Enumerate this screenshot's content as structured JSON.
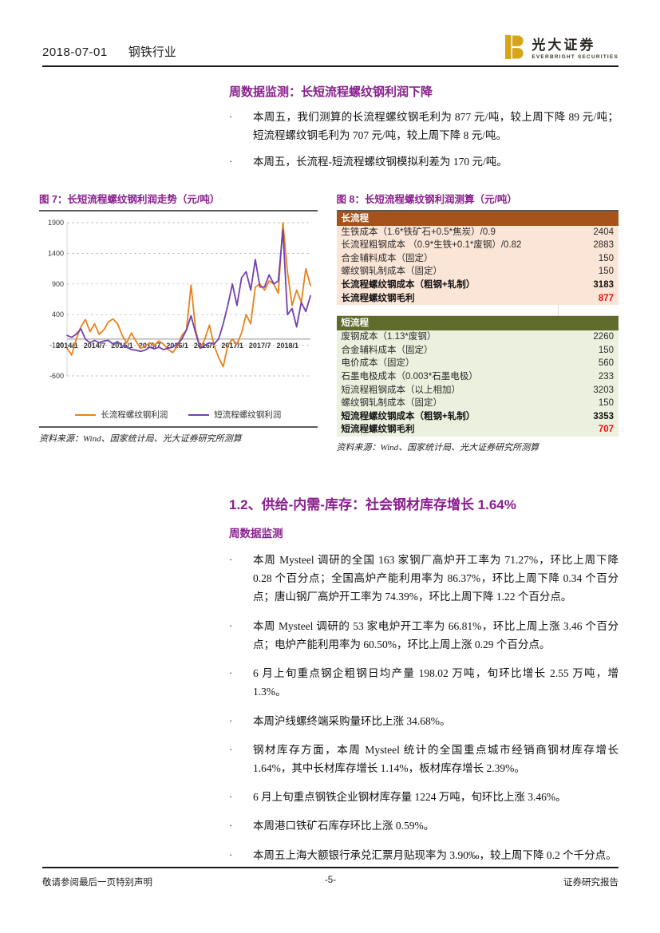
{
  "header": {
    "date": "2018-07-01",
    "industry": "钢铁行业",
    "brand_cn": "光大证券",
    "brand_en": "EVERBRIGHT SECURITIES",
    "brand_gold": "#d6a519"
  },
  "section1": {
    "heading": "周数据监测：长短流程螺纹钢利润下降",
    "bullets": [
      "本周五，我们测算的长流程螺纹钢毛利为 877 元/吨，较上周下降 89 元/吨；短流程螺纹钢毛利为 707 元/吨，较上周下降 8 元/吨。",
      "本周五，长流程-短流程螺纹钢模拟利差为 170 元/吨。"
    ]
  },
  "figure7": {
    "title": "图 7：长短流程螺纹钢利润走势（元/吨）",
    "source": "资料来源：Wind、国家统计局、光大证券研究所测算"
  },
  "figure8": {
    "title": "图 8：长短流程螺纹钢利润测算（元/吨）",
    "source": "资料来源：Wind、国家统计局、光大证券研究所测算",
    "long": {
      "header": "长流程",
      "rows": [
        {
          "label": "生铁成本（1.6*铁矿石+0.5*焦炭）/0.9",
          "value": "2404"
        },
        {
          "label": "长流程粗钢成本 （0.9*生铁+0.1*废钢）/0.82",
          "value": "2883"
        },
        {
          "label": "合金辅料成本（固定）",
          "value": "150"
        },
        {
          "label": "螺纹钢轧制成本（固定）",
          "value": "150"
        },
        {
          "label": "长流程螺纹钢成本（粗钢+轧制）",
          "value": "3183"
        },
        {
          "label": "长流程螺纹钢毛利",
          "value": "877"
        }
      ]
    },
    "short": {
      "header": "短流程",
      "rows": [
        {
          "label": "废钢成本（1.13*废钢）",
          "value": "2260"
        },
        {
          "label": "合金辅料成本（固定）",
          "value": "150"
        },
        {
          "label": "电价成本（固定）",
          "value": "560"
        },
        {
          "label": "石墨电极成本（0.003*石墨电极）",
          "value": "233"
        },
        {
          "label": "短流程粗钢成本（以上相加）",
          "value": "3203"
        },
        {
          "label": "螺纹钢轧制成本（固定）",
          "value": "150"
        },
        {
          "label": "短流程螺纹钢成本（粗钢+轧制）",
          "value": "3353"
        },
        {
          "label": "短流程螺纹钢毛利",
          "value": "707"
        }
      ]
    }
  },
  "section2": {
    "heading": "1.2、供给-内需-库存：社会钢材库存增长 1.64%",
    "subheading": "周数据监测",
    "bullets": [
      "本周 Mysteel 调研的全国 163 家钢厂高炉开工率为 71.27%，环比上周下降 0.28 个百分点；全国高炉产能利用率为 86.37%，环比上周下降 0.34 个百分点；唐山钢厂高炉开工率为 74.39%，环比上周下降 1.22 个百分点。",
      "本周 Mysteel 调研的 53 家电炉开工率为 66.81%，环比上周上涨 3.46 个百分点；电炉产能利用率为 60.50%，环比上周上涨 0.29 个百分点。",
      "6 月上旬重点钢企粗钢日均产量 198.02 万吨，旬环比增长 2.55 万吨，增 1.3%。",
      "本周沪线螺终端采购量环比上涨 34.68%。",
      "钢材库存方面，本周 Mysteel 统计的全国重点城市经销商钢材库存增长 1.64%，其中长材库存增长 1.14%，板材库存增长 2.39%。",
      "6 月上旬重点钢铁企业钢材库存量 1224 万吨，旬环比上涨 3.46%。",
      "本周港口铁矿石库存环比上涨 0.59%。",
      "本周五上海大额银行承兑汇票月贴现率为 3.90‰，较上周下降 0.2 个千分点。"
    ]
  },
  "footer": {
    "left": "敬请参阅最后一页特别声明",
    "center": "-5-",
    "right": "证券研究报告"
  },
  "chart_data": {
    "type": "line",
    "title": "长短流程螺纹钢利润走势（元/吨）",
    "ylim": [
      -600,
      1900
    ],
    "yticks": [
      1900,
      1400,
      900,
      400,
      -100,
      -600
    ],
    "grid": "dashed-horizontal",
    "legend_position": "bottom",
    "x": [
      "2014/1",
      "2014/2",
      "2014/3",
      "2014/4",
      "2014/5",
      "2014/6",
      "2014/7",
      "2014/8",
      "2014/9",
      "2014/10",
      "2014/11",
      "2014/12",
      "2015/1",
      "2015/2",
      "2015/3",
      "2015/4",
      "2015/5",
      "2015/6",
      "2015/7",
      "2015/8",
      "2015/9",
      "2015/10",
      "2015/11",
      "2015/12",
      "2016/1",
      "2016/2",
      "2016/3",
      "2016/4",
      "2016/5",
      "2016/6",
      "2016/7",
      "2016/8",
      "2016/9",
      "2016/10",
      "2016/11",
      "2016/12",
      "2017/1",
      "2017/2",
      "2017/3",
      "2017/4",
      "2017/5",
      "2017/6",
      "2017/7",
      "2017/8",
      "2017/9",
      "2017/10",
      "2017/11",
      "2017/12",
      "2018/1",
      "2018/2",
      "2018/3",
      "2018/4",
      "2018/5",
      "2018/6"
    ],
    "xticks": [
      "2014/1",
      "2014/7",
      "2015/1",
      "2015/7",
      "2016/1",
      "2016/7",
      "2017/1",
      "2017/7",
      "2018/1"
    ],
    "series": [
      {
        "name": "长流程螺纹钢利润",
        "color": "#e8821e",
        "values": [
          -150,
          -260,
          0,
          200,
          320,
          120,
          250,
          80,
          150,
          280,
          330,
          250,
          60,
          -60,
          100,
          -30,
          -150,
          -120,
          -60,
          -100,
          -30,
          -80,
          -170,
          -220,
          -120,
          60,
          150,
          880,
          150,
          -150,
          0,
          230,
          -100,
          -300,
          -450,
          -100,
          0,
          -80,
          100,
          400,
          250,
          850,
          900,
          800,
          950,
          900,
          750,
          1900,
          1100,
          550,
          800,
          600,
          1150,
          877
        ]
      },
      {
        "name": "短流程螺纹钢利润",
        "color": "#7340b0",
        "values": [
          60,
          30,
          80,
          170,
          0,
          -60,
          -20,
          -60,
          -30,
          -20,
          -80,
          -40,
          -110,
          -130,
          -170,
          -180,
          -200,
          -180,
          -130,
          -160,
          -130,
          -170,
          -150,
          -130,
          -80,
          0,
          150,
          380,
          100,
          -150,
          -100,
          -60,
          -80,
          0,
          250,
          550,
          900,
          550,
          1000,
          1100,
          800,
          1300,
          850,
          850,
          1050,
          900,
          950,
          1780,
          400,
          500,
          200,
          600,
          450,
          707
        ]
      }
    ]
  }
}
